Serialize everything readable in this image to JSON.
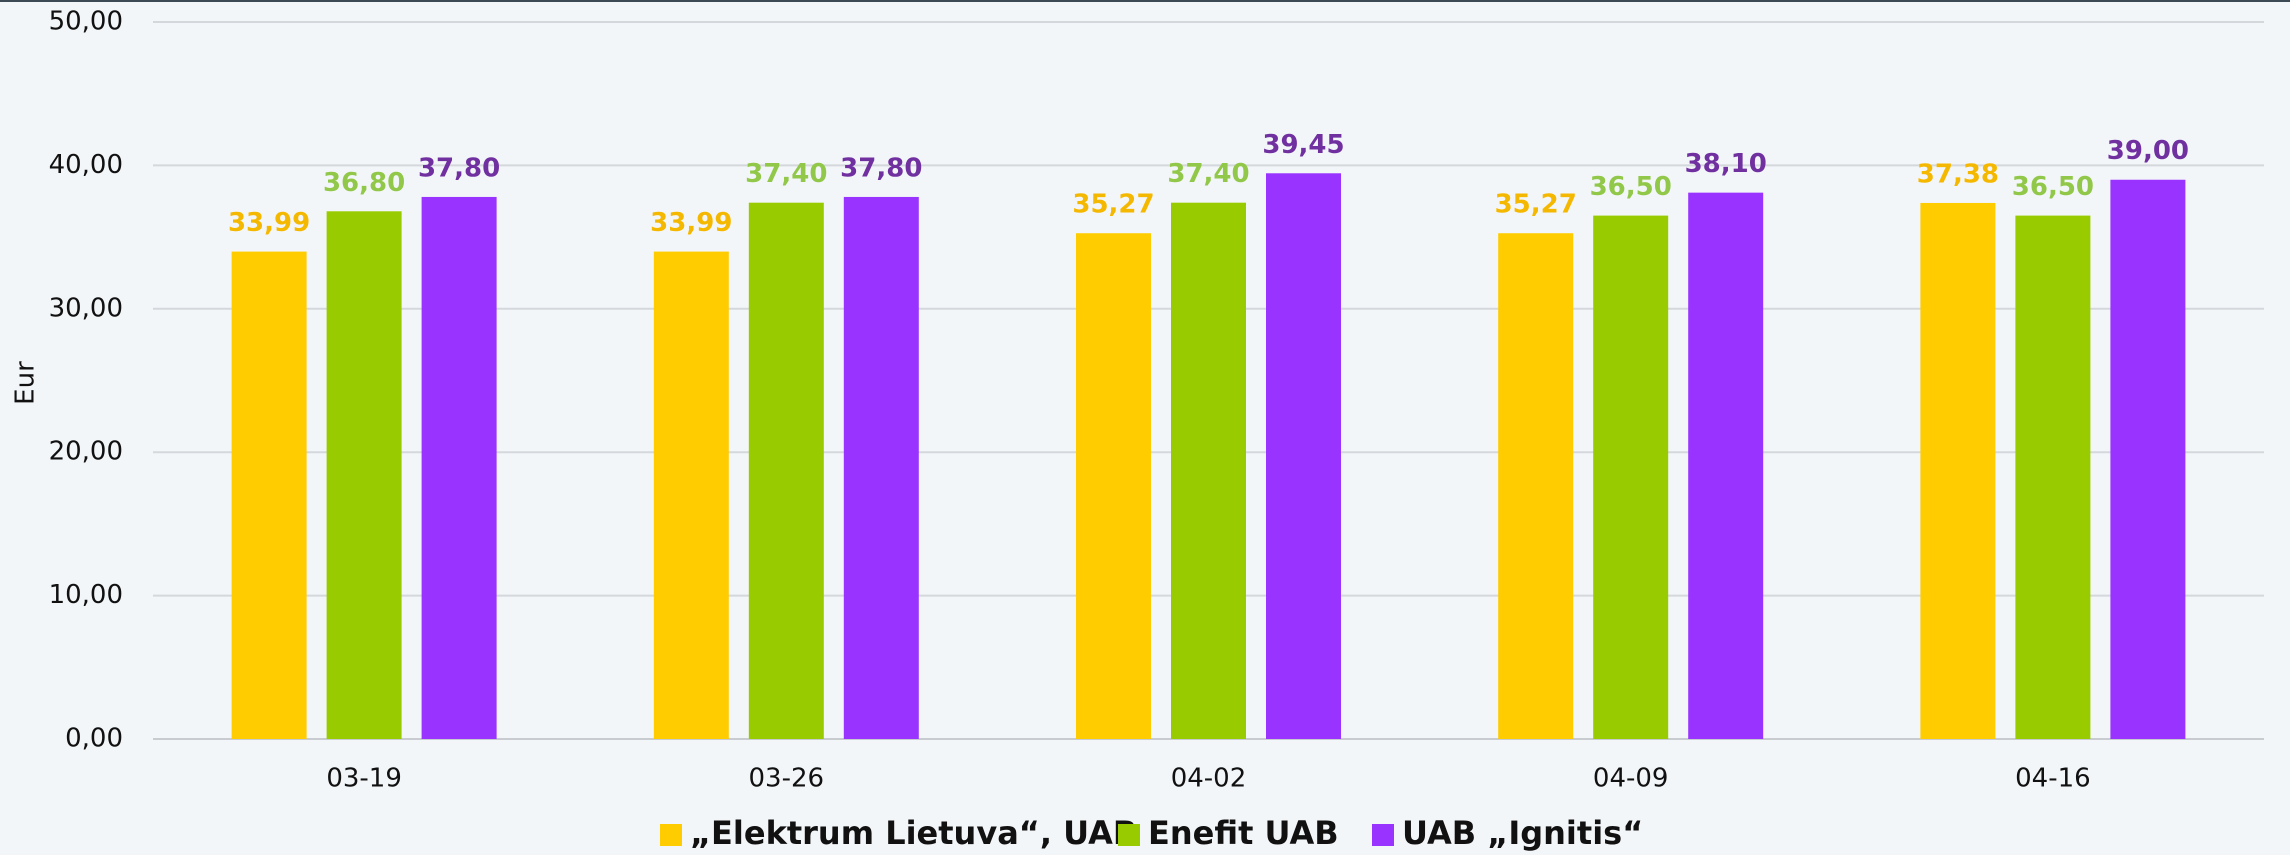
{
  "chart_data": {
    "type": "bar",
    "y_label": "Eur",
    "categories": [
      "03-19",
      "03-26",
      "04-02",
      "04-09",
      "04-16"
    ],
    "series": [
      {
        "name": "„Elektrum Lietuva“, UAB",
        "color": "#ffcc00",
        "label_color": "#f5b800",
        "values": [
          33.99,
          33.99,
          35.27,
          35.27,
          37.38
        ],
        "value_labels": [
          "33,99",
          "33,99",
          "35,27",
          "35,27",
          "37,38"
        ]
      },
      {
        "name": "Enefit UAB",
        "color": "#99cc00",
        "label_color": "#92c84a",
        "values": [
          36.8,
          37.4,
          37.4,
          36.5,
          36.5
        ],
        "value_labels": [
          "36,80",
          "37,40",
          "37,40",
          "36,50",
          "36,50"
        ]
      },
      {
        "name": "UAB „Ignitis“",
        "color": "#9933ff",
        "label_color": "#7030a0",
        "values": [
          37.8,
          37.8,
          39.45,
          38.1,
          39.0
        ],
        "value_labels": [
          "37,80",
          "37,80",
          "39,45",
          "38,10",
          "39,00"
        ]
      }
    ],
    "ylim": [
      0,
      50
    ],
    "yticks": [
      {
        "value": 0,
        "label": "0,00"
      },
      {
        "value": 10,
        "label": "10,00"
      },
      {
        "value": 20,
        "label": "20,00"
      },
      {
        "value": 30,
        "label": "30,00"
      },
      {
        "value": 40,
        "label": "40,00"
      },
      {
        "value": 50,
        "label": "50,00"
      }
    ],
    "grid": true,
    "legend": "bottom"
  }
}
